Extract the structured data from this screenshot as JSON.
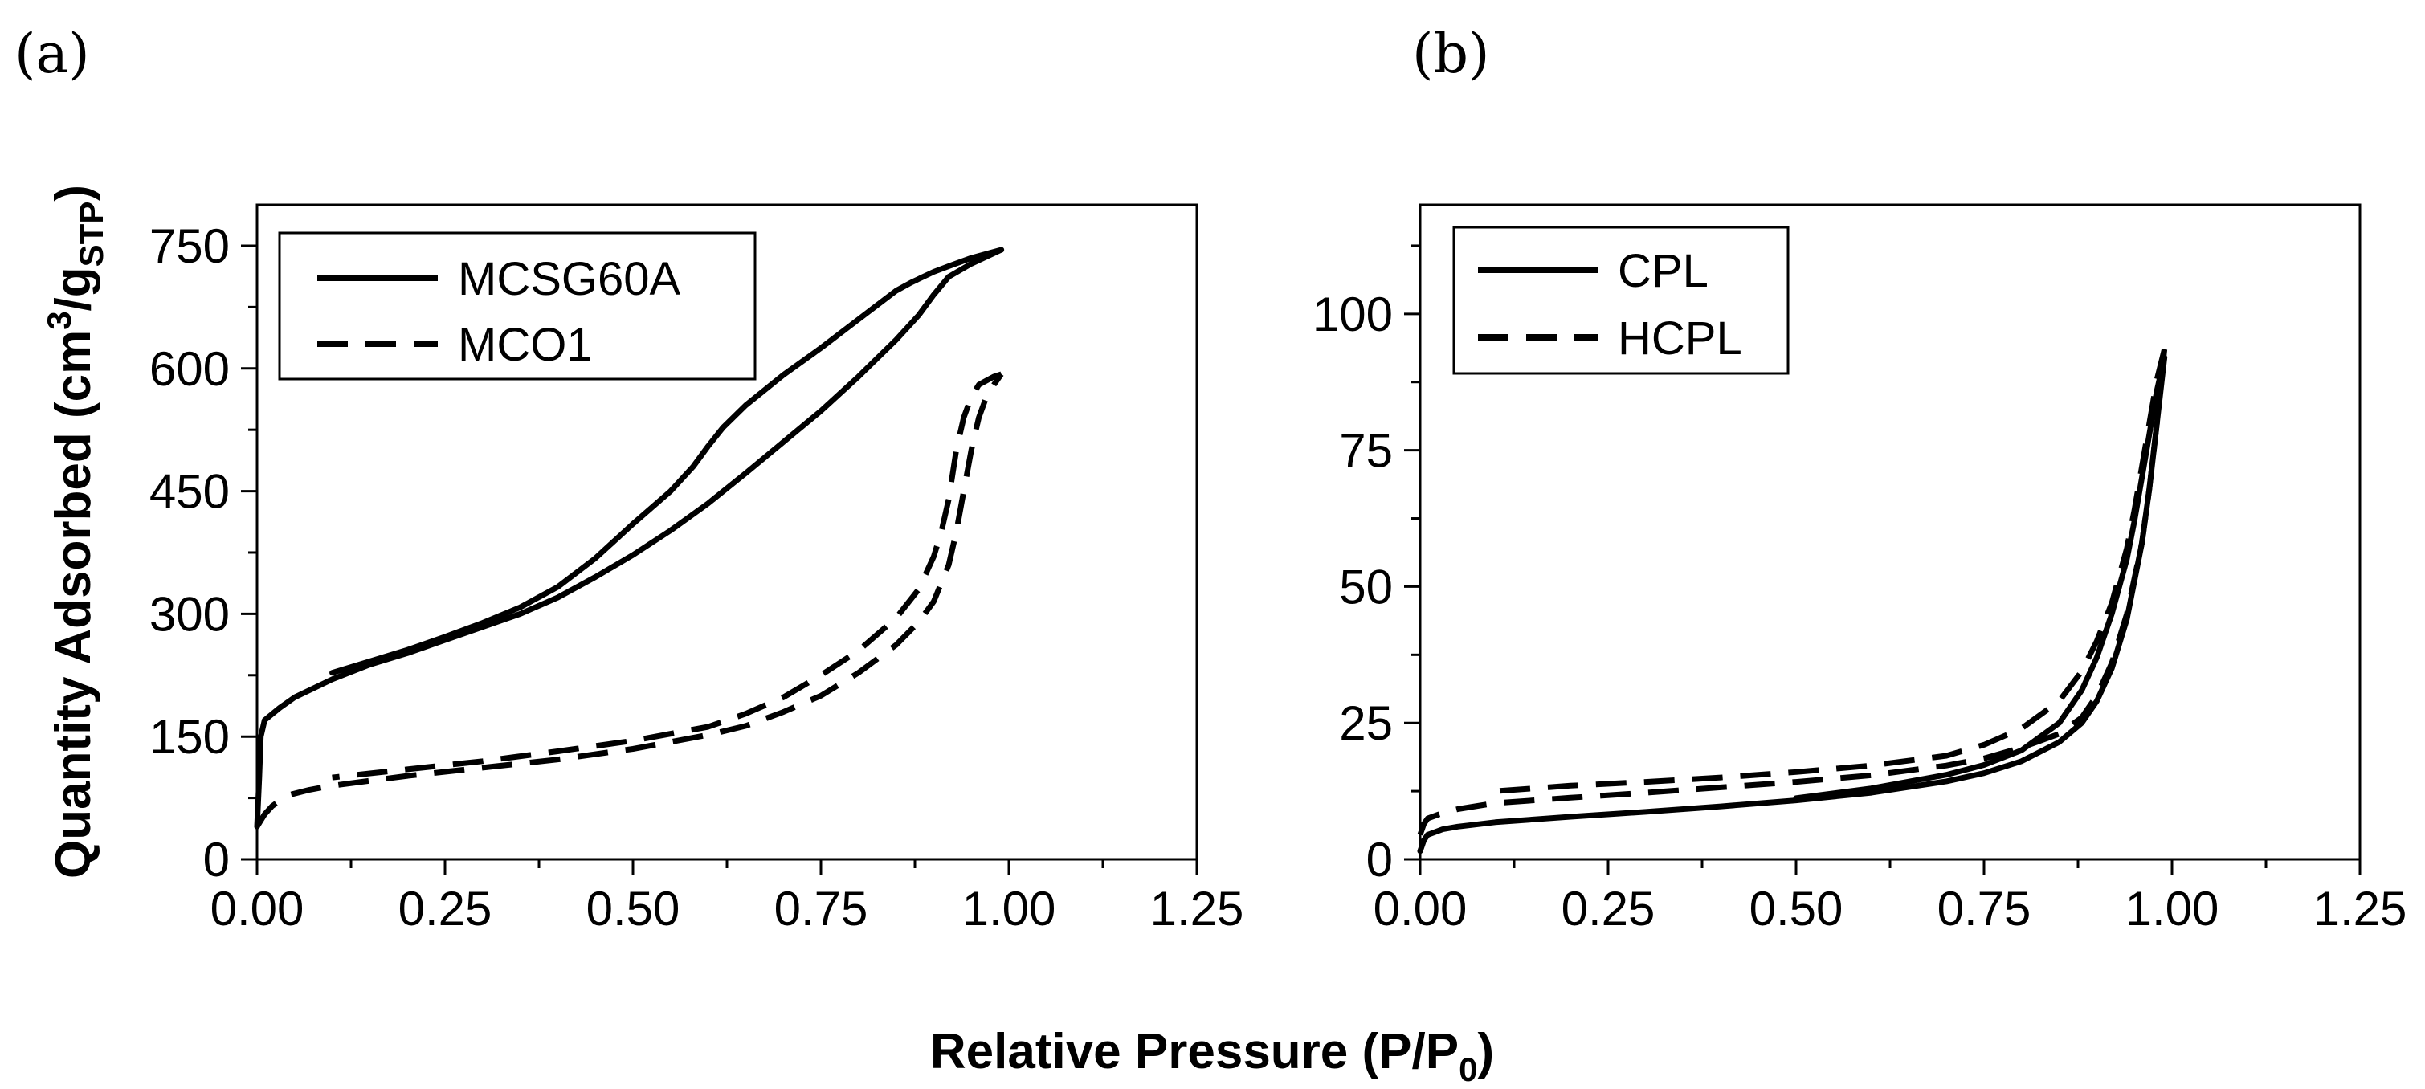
{
  "figure": {
    "xlabel_main": "Relative Pressure (P/P",
    "xlabel_sub": "0",
    "xlabel_close": ")"
  },
  "chart_data": [
    {
      "type": "line",
      "panel_label": "(a)",
      "ylabel": {
        "main": "Quantity Adsorbed (cm",
        "sup": "3",
        "mid": "/g",
        "sub": "STP",
        "close": ")"
      },
      "xlim": [
        0,
        1.25
      ],
      "ylim": [
        0,
        800
      ],
      "xticks": [
        0,
        0.25,
        0.5,
        0.75,
        1.0,
        1.25
      ],
      "xtick_labels": [
        "0.00",
        "0.25",
        "0.50",
        "0.75",
        "1.00",
        "1.25"
      ],
      "yticks": [
        0,
        150,
        300,
        450,
        600,
        750
      ],
      "ytick_labels": [
        "0",
        "150",
        "300",
        "450",
        "600",
        "750"
      ],
      "legend": {
        "position": "top-left"
      },
      "series": [
        {
          "name": "MCSG60A",
          "style": "solid",
          "color": "#000000",
          "adsorption": [
            [
              0.0,
              40
            ],
            [
              0.003,
              100
            ],
            [
              0.005,
              150
            ],
            [
              0.01,
              170
            ],
            [
              0.03,
              185
            ],
            [
              0.05,
              198
            ],
            [
              0.1,
              220
            ],
            [
              0.15,
              238
            ],
            [
              0.2,
              252
            ],
            [
              0.25,
              268
            ],
            [
              0.3,
              284
            ],
            [
              0.35,
              300
            ],
            [
              0.4,
              320
            ],
            [
              0.45,
              345
            ],
            [
              0.5,
              372
            ],
            [
              0.55,
              402
            ],
            [
              0.6,
              435
            ],
            [
              0.65,
              472
            ],
            [
              0.7,
              510
            ],
            [
              0.75,
              548
            ],
            [
              0.8,
              590
            ],
            [
              0.85,
              635
            ],
            [
              0.88,
              665
            ],
            [
              0.9,
              690
            ],
            [
              0.92,
              712
            ],
            [
              0.95,
              728
            ],
            [
              0.99,
              745
            ]
          ],
          "desorption": [
            [
              0.99,
              745
            ],
            [
              0.95,
              735
            ],
            [
              0.92,
              725
            ],
            [
              0.9,
              718
            ],
            [
              0.87,
              705
            ],
            [
              0.85,
              695
            ],
            [
              0.8,
              660
            ],
            [
              0.75,
              625
            ],
            [
              0.7,
              592
            ],
            [
              0.65,
              555
            ],
            [
              0.62,
              528
            ],
            [
              0.6,
              505
            ],
            [
              0.58,
              480
            ],
            [
              0.55,
              450
            ],
            [
              0.5,
              410
            ],
            [
              0.45,
              368
            ],
            [
              0.4,
              333
            ],
            [
              0.35,
              308
            ],
            [
              0.3,
              289
            ],
            [
              0.25,
              272
            ],
            [
              0.2,
              256
            ],
            [
              0.15,
              242
            ],
            [
              0.1,
              228
            ]
          ]
        },
        {
          "name": "MCO1",
          "style": "dashed",
          "color": "#000000",
          "adsorption": [
            [
              0.0,
              40
            ],
            [
              0.01,
              55
            ],
            [
              0.02,
              65
            ],
            [
              0.04,
              78
            ],
            [
              0.07,
              85
            ],
            [
              0.1,
              90
            ],
            [
              0.2,
              102
            ],
            [
              0.3,
              112
            ],
            [
              0.4,
              122
            ],
            [
              0.5,
              135
            ],
            [
              0.6,
              152
            ],
            [
              0.65,
              163
            ],
            [
              0.7,
              180
            ],
            [
              0.75,
              200
            ],
            [
              0.8,
              228
            ],
            [
              0.85,
              262
            ],
            [
              0.88,
              290
            ],
            [
              0.9,
              315
            ],
            [
              0.92,
              360
            ],
            [
              0.93,
              400
            ],
            [
              0.94,
              450
            ],
            [
              0.95,
              500
            ],
            [
              0.96,
              540
            ],
            [
              0.97,
              565
            ],
            [
              0.98,
              580
            ],
            [
              0.99,
              593
            ]
          ],
          "desorption": [
            [
              0.99,
              593
            ],
            [
              0.98,
              590
            ],
            [
              0.97,
              585
            ],
            [
              0.96,
              580
            ],
            [
              0.95,
              565
            ],
            [
              0.94,
              540
            ],
            [
              0.93,
              500
            ],
            [
              0.92,
              440
            ],
            [
              0.91,
              400
            ],
            [
              0.9,
              370
            ],
            [
              0.88,
              330
            ],
            [
              0.85,
              295
            ],
            [
              0.8,
              255
            ],
            [
              0.75,
              225
            ],
            [
              0.7,
              198
            ],
            [
              0.65,
              178
            ],
            [
              0.6,
              162
            ],
            [
              0.5,
              145
            ],
            [
              0.4,
              132
            ],
            [
              0.3,
              120
            ],
            [
              0.2,
              110
            ],
            [
              0.1,
              100
            ]
          ]
        }
      ]
    },
    {
      "type": "line",
      "panel_label": "(b)",
      "xlim": [
        0,
        1.25
      ],
      "ylim": [
        0,
        120
      ],
      "xticks": [
        0,
        0.25,
        0.5,
        0.75,
        1.0,
        1.25
      ],
      "xtick_labels": [
        "0.00",
        "0.25",
        "0.50",
        "0.75",
        "1.00",
        "1.25"
      ],
      "yticks": [
        0,
        25,
        50,
        75,
        100
      ],
      "ytick_labels": [
        "0",
        "25",
        "50",
        "75",
        "100"
      ],
      "legend": {
        "position": "top-left"
      },
      "series": [
        {
          "name": "CPL",
          "style": "solid",
          "color": "#000000",
          "adsorption": [
            [
              0.0,
              1.5
            ],
            [
              0.005,
              3.5
            ],
            [
              0.01,
              4.5
            ],
            [
              0.03,
              5.5
            ],
            [
              0.05,
              6
            ],
            [
              0.1,
              6.8
            ],
            [
              0.2,
              7.8
            ],
            [
              0.3,
              8.7
            ],
            [
              0.4,
              9.7
            ],
            [
              0.5,
              10.8
            ],
            [
              0.6,
              12.2
            ],
            [
              0.7,
              14.3
            ],
            [
              0.75,
              15.8
            ],
            [
              0.8,
              18
            ],
            [
              0.85,
              21.5
            ],
            [
              0.88,
              25
            ],
            [
              0.9,
              29
            ],
            [
              0.92,
              35
            ],
            [
              0.94,
              44
            ],
            [
              0.96,
              58
            ],
            [
              0.97,
              68
            ],
            [
              0.98,
              80
            ],
            [
              0.99,
              92
            ]
          ],
          "desorption": [
            [
              0.99,
              92
            ],
            [
              0.98,
              86
            ],
            [
              0.97,
              78
            ],
            [
              0.96,
              70
            ],
            [
              0.95,
              62
            ],
            [
              0.94,
              55
            ],
            [
              0.92,
              45
            ],
            [
              0.9,
              37
            ],
            [
              0.88,
              31
            ],
            [
              0.85,
              25
            ],
            [
              0.8,
              20
            ],
            [
              0.75,
              17.3
            ],
            [
              0.7,
              15.5
            ],
            [
              0.6,
              13
            ],
            [
              0.5,
              11.2
            ]
          ]
        },
        {
          "name": "HCPL",
          "style": "dashed",
          "color": "#000000",
          "adsorption": [
            [
              0.0,
              4.5
            ],
            [
              0.005,
              6.5
            ],
            [
              0.01,
              7.5
            ],
            [
              0.03,
              8.5
            ],
            [
              0.05,
              9.2
            ],
            [
              0.1,
              10.3
            ],
            [
              0.2,
              11.3
            ],
            [
              0.3,
              12.2
            ],
            [
              0.4,
              13.2
            ],
            [
              0.5,
              14.2
            ],
            [
              0.6,
              15.4
            ],
            [
              0.7,
              17.2
            ],
            [
              0.75,
              18.5
            ],
            [
              0.8,
              20.5
            ],
            [
              0.85,
              23
            ],
            [
              0.88,
              26
            ],
            [
              0.9,
              30
            ],
            [
              0.92,
              36
            ],
            [
              0.94,
              45
            ],
            [
              0.96,
              58
            ],
            [
              0.97,
              68
            ],
            [
              0.98,
              80
            ],
            [
              0.99,
              93.5
            ]
          ],
          "desorption": [
            [
              0.99,
              93.5
            ],
            [
              0.98,
              88
            ],
            [
              0.97,
              80
            ],
            [
              0.96,
              72
            ],
            [
              0.95,
              64
            ],
            [
              0.94,
              57
            ],
            [
              0.92,
              47
            ],
            [
              0.9,
              40
            ],
            [
              0.88,
              34.5
            ],
            [
              0.85,
              29
            ],
            [
              0.8,
              24
            ],
            [
              0.75,
              21
            ],
            [
              0.7,
              19
            ],
            [
              0.6,
              17.2
            ],
            [
              0.5,
              16
            ],
            [
              0.4,
              15
            ],
            [
              0.3,
              14.2
            ],
            [
              0.2,
              13.5
            ],
            [
              0.1,
              12.5
            ]
          ]
        }
      ]
    }
  ]
}
